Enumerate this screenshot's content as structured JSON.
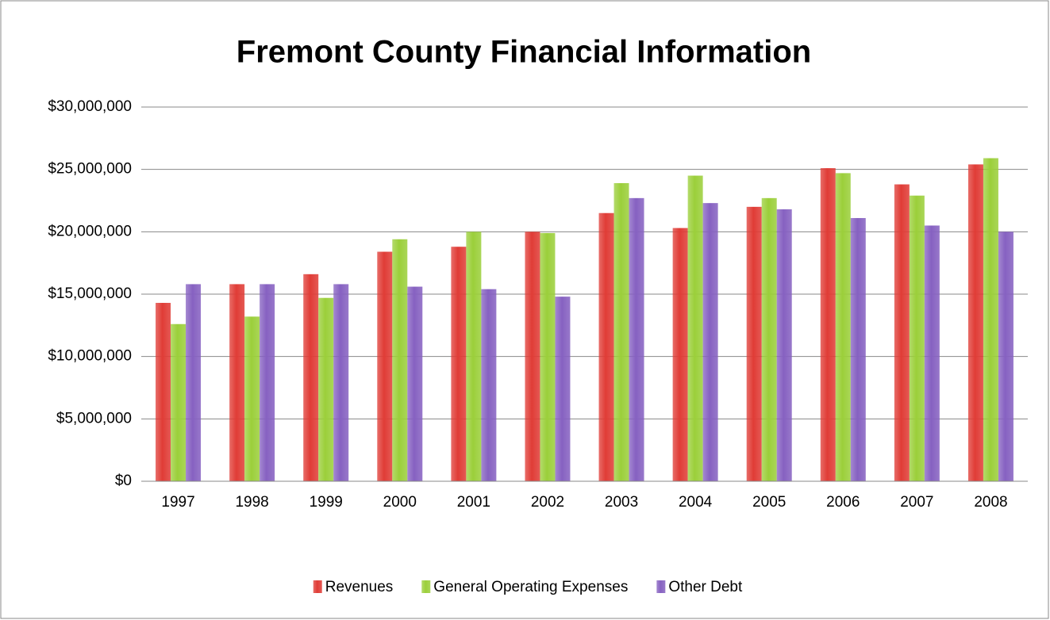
{
  "chart_data": {
    "type": "bar",
    "title": "Fremont County Financial Information",
    "categories": [
      "1997",
      "1998",
      "1999",
      "2000",
      "2001",
      "2002",
      "2003",
      "2004",
      "2005",
      "2006",
      "2007",
      "2008"
    ],
    "series": [
      {
        "name": "Revenues",
        "color": "#e03c36",
        "values": [
          14300000,
          15800000,
          16600000,
          18400000,
          18800000,
          20000000,
          21500000,
          20300000,
          22000000,
          25100000,
          23800000,
          25400000
        ]
      },
      {
        "name": "General Operating Expenses",
        "color": "#9bcf3a",
        "values": [
          12600000,
          13200000,
          14700000,
          19400000,
          20000000,
          19900000,
          23900000,
          24500000,
          22700000,
          24700000,
          22900000,
          25900000
        ]
      },
      {
        "name": "Other Debt",
        "color": "#8661c1",
        "values": [
          15800000,
          15800000,
          15800000,
          15600000,
          15400000,
          14800000,
          22700000,
          22300000,
          21800000,
          21100000,
          20500000,
          20000000
        ]
      }
    ],
    "ylim": [
      0,
      30000000
    ],
    "yticks": [
      {
        "value": 0,
        "label": "$0"
      },
      {
        "value": 5000000,
        "label": "$5,000,000"
      },
      {
        "value": 10000000,
        "label": "$10,000,000"
      },
      {
        "value": 15000000,
        "label": "$15,000,000"
      },
      {
        "value": 20000000,
        "label": "$20,000,000"
      },
      {
        "value": 25000000,
        "label": "$25,000,000"
      },
      {
        "value": 30000000,
        "label": "$30,000,000"
      }
    ],
    "grid": true,
    "legend": "bottom"
  }
}
